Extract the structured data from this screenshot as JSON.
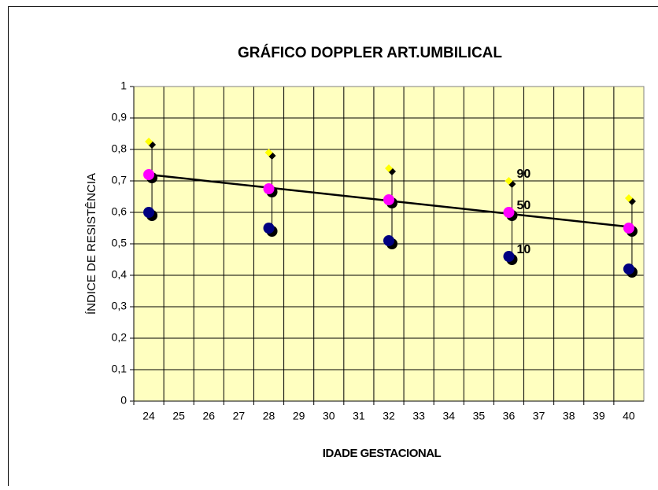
{
  "chart_data": {
    "type": "scatter",
    "title": "GRÁFICO DOPPLER ART.UMBILICAL",
    "x_label": "IDADE GESTACIONAL",
    "y_label": "ÍNDICE DE RESISTÊNCIA",
    "categories": [
      "24",
      "25",
      "26",
      "27",
      "28",
      "29",
      "30",
      "31",
      "32",
      "33",
      "34",
      "35",
      "36",
      "37",
      "38",
      "39",
      "40"
    ],
    "series": [
      {
        "color": "#ffff00",
        "marker": "diamond",
        "values": [
          0.825,
          null,
          null,
          null,
          0.79,
          null,
          null,
          null,
          0.74,
          null,
          null,
          null,
          0.7,
          null,
          null,
          null,
          0.645
        ]
      },
      {
        "color": "#ff00ff",
        "marker": "circle",
        "values": [
          0.72,
          null,
          null,
          null,
          0.675,
          null,
          null,
          null,
          0.64,
          null,
          null,
          null,
          0.6,
          null,
          null,
          null,
          0.55
        ]
      },
      {
        "color": "#000080",
        "marker": "circle",
        "values": [
          0.6,
          null,
          null,
          null,
          0.55,
          null,
          null,
          null,
          0.51,
          null,
          null,
          null,
          0.46,
          null,
          null,
          null,
          0.42
        ]
      }
    ],
    "annotations": [
      "90",
      "50",
      "10"
    ],
    "trendline": true,
    "high_low_lines": true,
    "ylim": [
      0,
      1
    ],
    "yticks": [
      0,
      {
        "value": 0.1,
        "label": "0,1"
      },
      {
        "value": 0.2,
        "label": "0,2"
      },
      {
        "value": 0.3,
        "label": "0,3"
      },
      {
        "value": 0.4,
        "label": "0,4"
      },
      {
        "value": 0.5,
        "label": "0,5"
      },
      {
        "value": 0.6,
        "label": "0,6"
      },
      {
        "value": 0.7,
        "label": "0,7"
      },
      {
        "value": 0.8,
        "label": "0,8"
      },
      {
        "value": 0.9,
        "label": "0,9"
      },
      1
    ],
    "grid": true,
    "plot_background": "#ffffc0"
  }
}
